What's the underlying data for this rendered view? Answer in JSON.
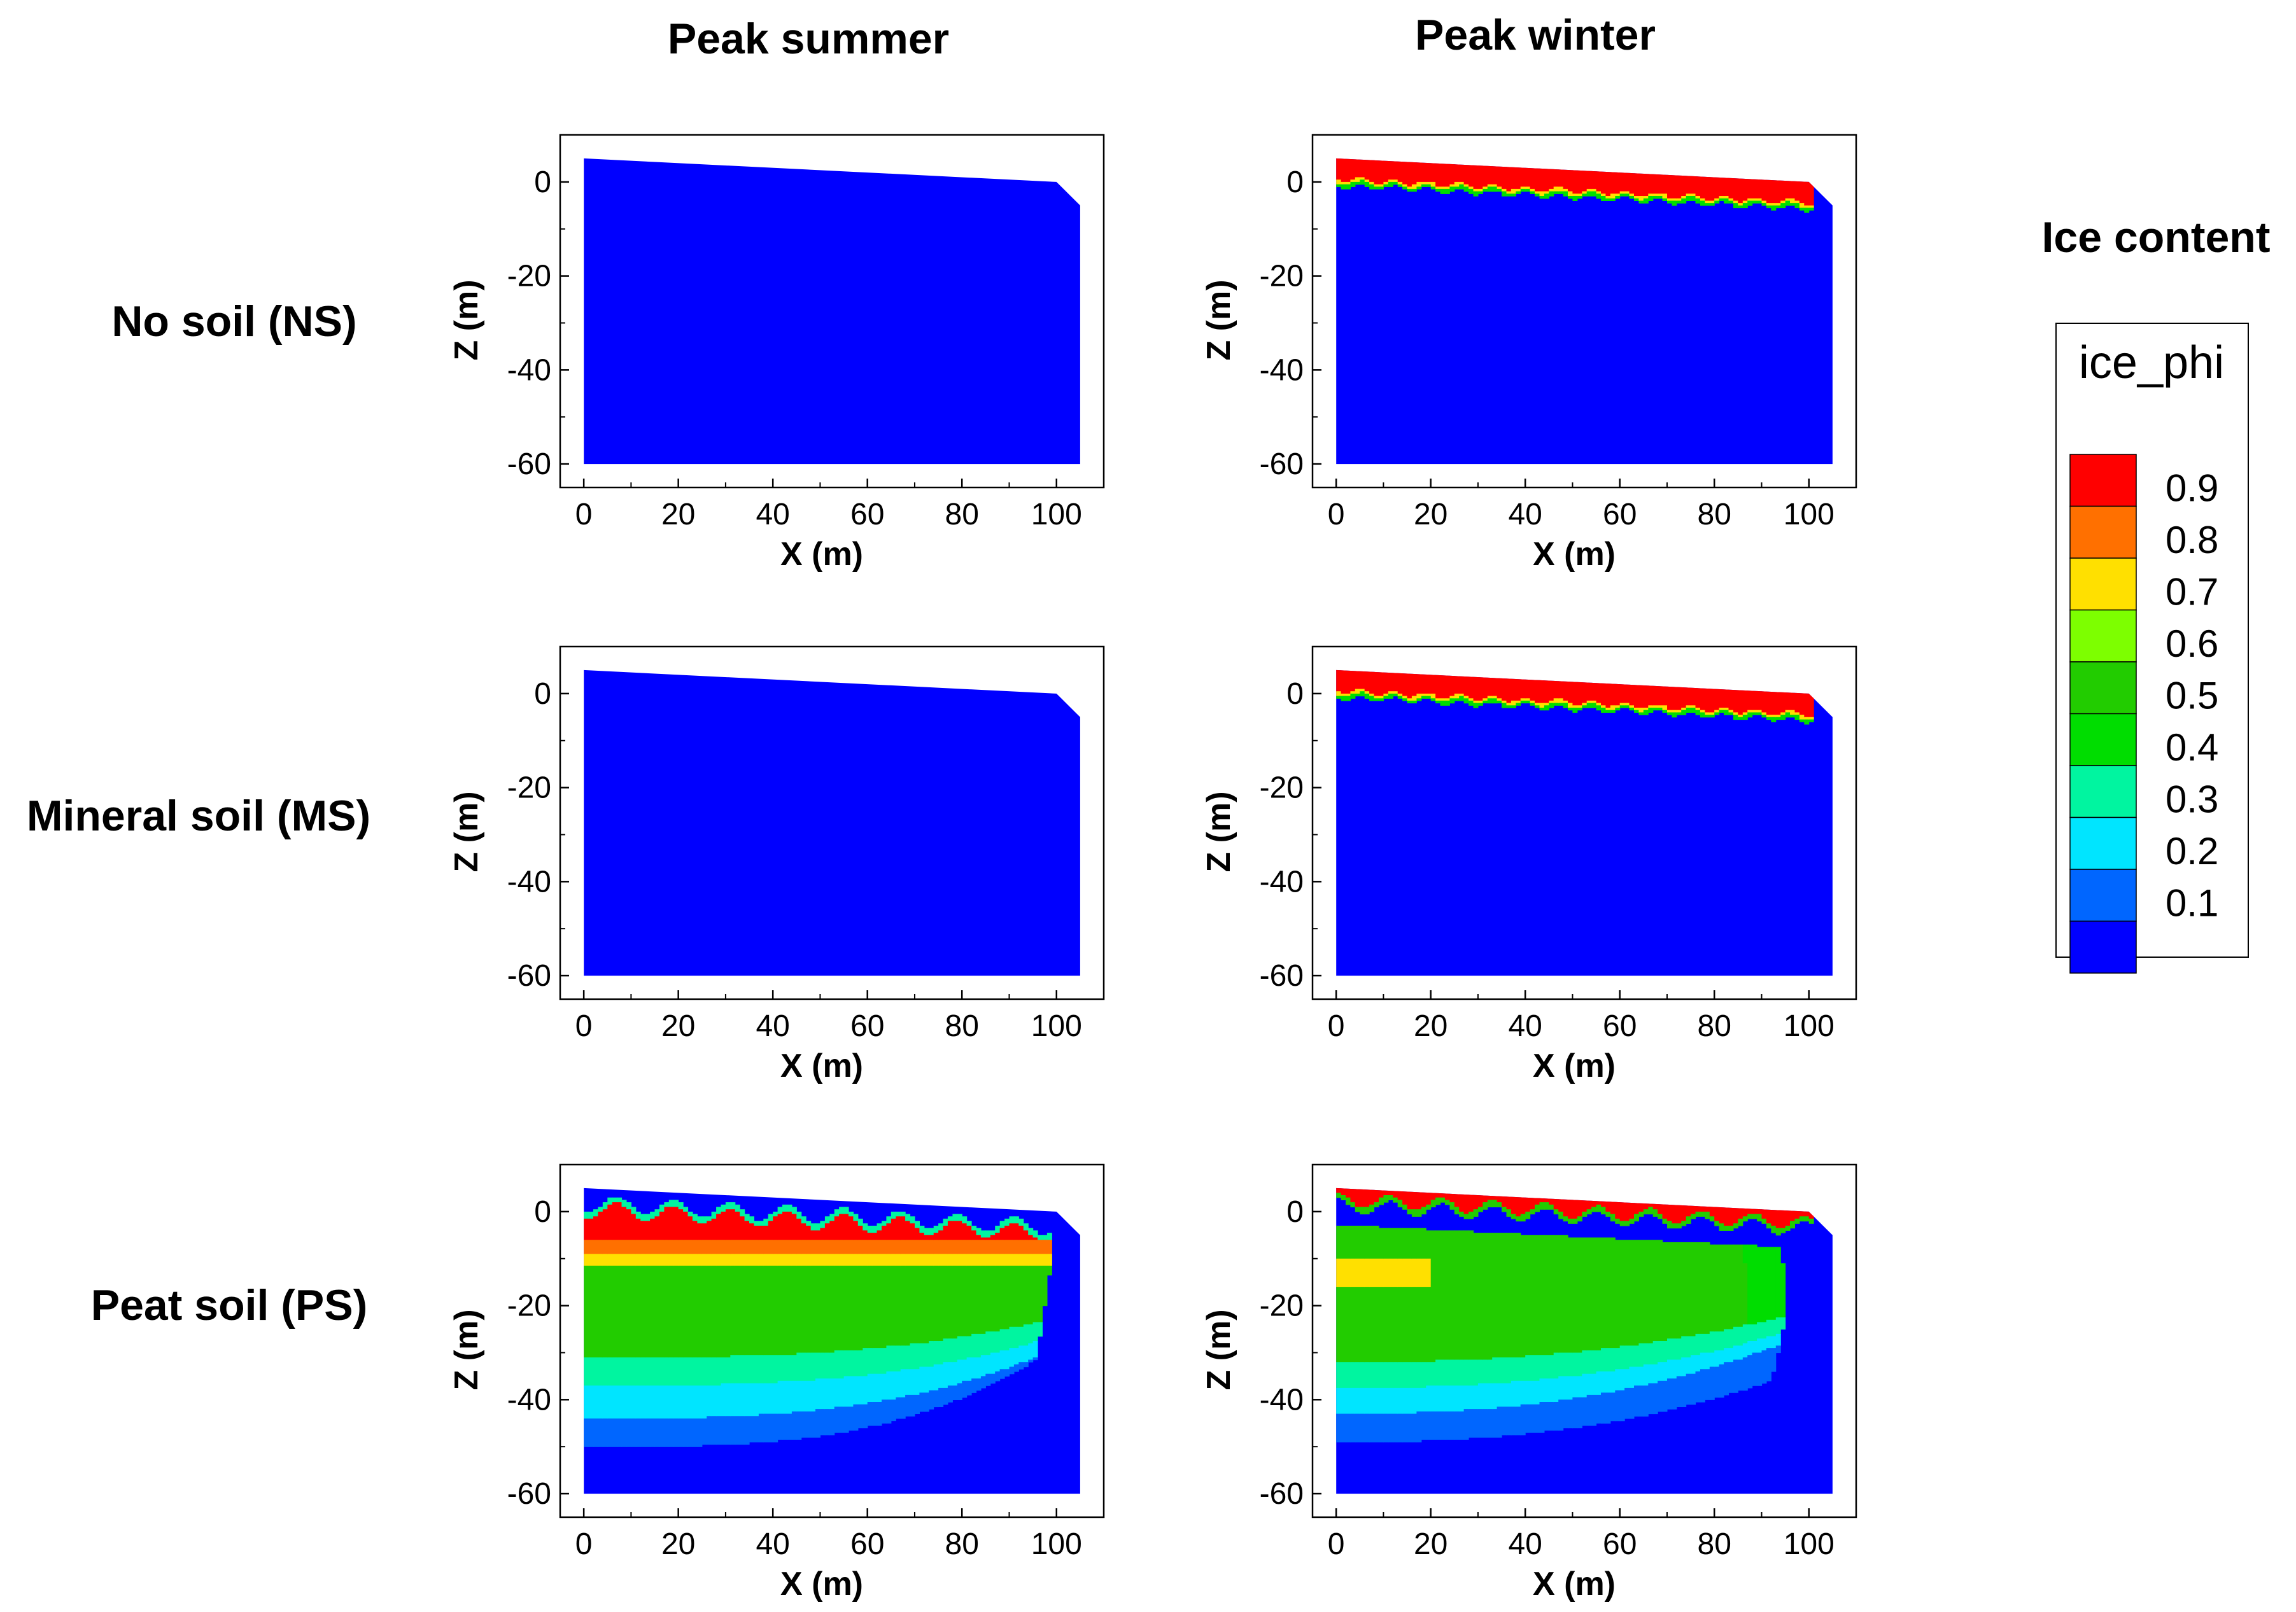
{
  "figure": {
    "column_titles": [
      "Peak summer",
      "Peak winter"
    ],
    "row_titles": [
      "No soil (NS)",
      "Mineral soil (MS)",
      "Peat soil (PS)"
    ],
    "colorbar_title": "Ice content"
  },
  "chart_data": {
    "type": "heatmap",
    "variable": "ice_phi",
    "xlabel": "X (m)",
    "ylabel": "Z (m)",
    "xlim": [
      -5,
      110
    ],
    "ylim": [
      -65,
      10
    ],
    "xticks": [
      0,
      20,
      40,
      60,
      80,
      100
    ],
    "yticks": [
      0,
      -20,
      -40,
      -60
    ],
    "legend": {
      "title": "ice_phi",
      "levels": [
        0.1,
        0.2,
        0.3,
        0.4,
        0.5,
        0.6,
        0.7,
        0.8,
        0.9
      ],
      "colors": [
        "#0000ff",
        "#0066ff",
        "#00e5ff",
        "#00f5a0",
        "#00dd00",
        "#22cc00",
        "#7dff00",
        "#ffe000",
        "#ff7000",
        "#ff0000"
      ]
    },
    "domain_outline": {
      "surface_z_at_x0": 5,
      "surface_z_at_x100": 0,
      "right_edge_x": 105,
      "bottom_z": -60
    },
    "panels": [
      {
        "row": "No soil (NS)",
        "column": "Peak summer",
        "scenario": "ns_summer"
      },
      {
        "row": "No soil (NS)",
        "column": "Peak winter",
        "scenario": "frozen_top"
      },
      {
        "row": "Mineral soil (MS)",
        "column": "Peak summer",
        "scenario": "ns_summer"
      },
      {
        "row": "Mineral soil (MS)",
        "column": "Peak winter",
        "scenario": "frozen_top"
      },
      {
        "row": "Peat soil (PS)",
        "column": "Peak summer",
        "scenario": "peat_summer"
      },
      {
        "row": "Peat soil (PS)",
        "column": "Peak winter",
        "scenario": "peat_winter"
      }
    ]
  },
  "colors": {
    "ice_0_1": "#0000ff",
    "ice_0_2": "#0066ff",
    "ice_0_3": "#00e5ff",
    "ice_0_4": "#00f5a0",
    "ice_0_5": "#00dd00",
    "ice_0_6": "#22cc00",
    "ice_0_7": "#7dff00",
    "ice_0_8": "#ffe000",
    "ice_0_9": "#ff7000",
    "ice_1_0": "#ff0000"
  }
}
